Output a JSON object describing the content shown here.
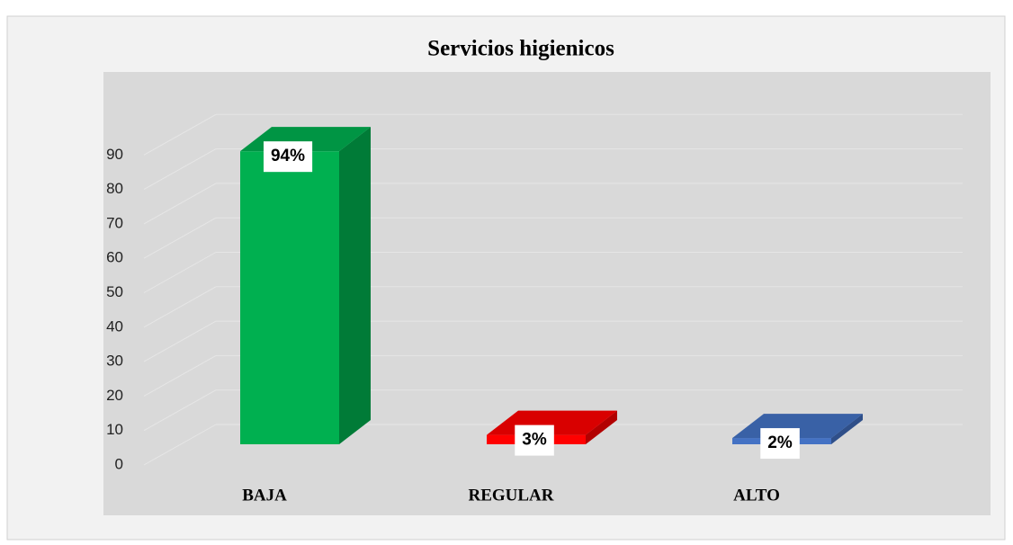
{
  "chart_data": {
    "type": "bar3d",
    "title": "Servicios higienicos",
    "categories": [
      "BAJA",
      "REGULAR",
      "ALTO"
    ],
    "values": [
      94,
      3,
      2
    ],
    "value_labels": [
      "94%",
      "3%",
      "2%"
    ],
    "colors": [
      "#00b050",
      "#ff0000",
      "#4472c4"
    ],
    "ylim": [
      0,
      100
    ],
    "yticks": [
      0,
      10,
      20,
      30,
      40,
      50,
      60,
      70,
      80,
      90
    ],
    "grid": true
  }
}
